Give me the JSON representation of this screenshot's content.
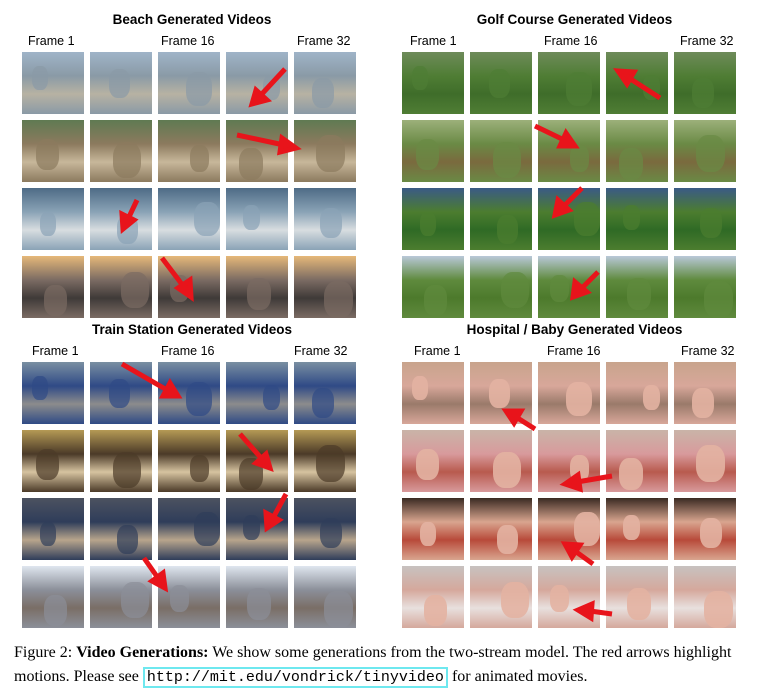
{
  "panels": [
    {
      "title": "Beach Generated Videos",
      "frames": [
        "Frame 1",
        "Frame 16",
        "Frame 32"
      ]
    },
    {
      "title": "Golf Course Generated Videos",
      "frames": [
        "Frame 1",
        "Frame 16",
        "Frame 32"
      ]
    },
    {
      "title": "Train Station Generated Videos",
      "frames": [
        "Frame 1",
        "Frame 16",
        "Frame 32"
      ]
    },
    {
      "title": "Hospital / Baby Generated Videos",
      "frames": [
        "Frame 1",
        "Frame 16",
        "Frame 32"
      ]
    }
  ],
  "caption": {
    "prefix": "Figure 2: ",
    "bold": "Video Generations:",
    "text": " We show some generations from the two-stream model. The red arrows highlight motions. Please see ",
    "url": "http://mit.edu/vondrick/tinyvideo",
    "suffix": " for animated movies."
  },
  "colors": {
    "arrow": "#e8141b",
    "url_box": "#6ee8ef"
  }
}
